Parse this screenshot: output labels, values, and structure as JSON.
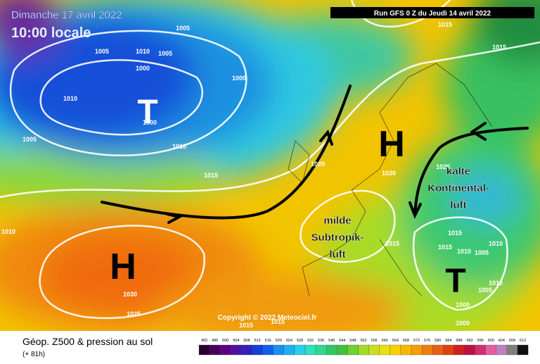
{
  "header": {
    "date": "Dimanche 17 avril 2022",
    "time": "10:00 locale",
    "run": "Run GFS 0 Z du Jeudi 14 avril 2022"
  },
  "footer": {
    "title": "Géop. Z500 & pression au sol",
    "lead": "(+ 81h)",
    "copyright": "Copyright © 2022 Meteociel.fr"
  },
  "legend": {
    "values": [
      492,
      496,
      500,
      504,
      508,
      512,
      516,
      520,
      524,
      528,
      532,
      536,
      540,
      544,
      548,
      552,
      556,
      560,
      564,
      568,
      572,
      576,
      580,
      584,
      588,
      592,
      596,
      600,
      604,
      608,
      612
    ]
  },
  "systems": [
    {
      "label": "T"
    },
    {
      "label": "H"
    },
    {
      "label": "H"
    },
    {
      "label": "T"
    }
  ],
  "annotations": [
    {
      "lines": [
        "milde",
        "Subtropik-",
        "luft"
      ]
    },
    {
      "lines": [
        "kalte",
        "Kontinental-",
        "luft"
      ]
    }
  ],
  "isobar_labels": [
    1005,
    1005,
    1010,
    1005,
    1000,
    1000,
    1010,
    1000,
    1005,
    1010,
    1015,
    1020,
    1030,
    1010,
    1030,
    1025,
    1015,
    1015,
    1015,
    1015,
    1025,
    1015,
    1015,
    1015,
    1010,
    1010,
    1005,
    1010,
    1005,
    1000,
    1000
  ]
}
